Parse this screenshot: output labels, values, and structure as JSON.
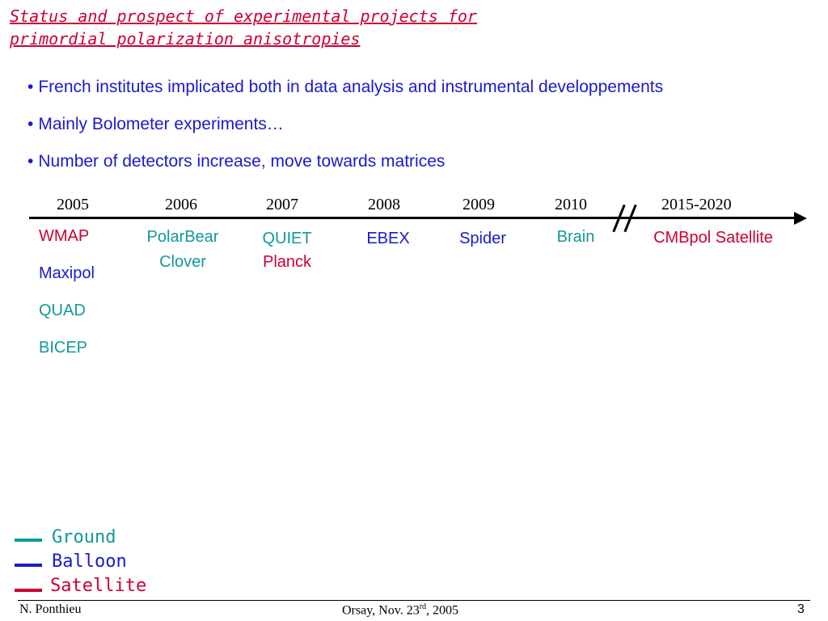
{
  "slide": {
    "title_line1": "Status and prospect of experimental projects for",
    "title_line2": "primordial polarization anisotropies",
    "bullets": [
      "French institutes implicated both in data analysis and instrumental developpements",
      "Mainly Bolometer experiments…",
      "Number of detectors increase, move towards matrices"
    ],
    "bullet_symbol": "•"
  },
  "timeline": {
    "years": [
      "2005",
      "2006",
      "2007",
      "2008",
      "2009",
      "2010",
      "2015-2020"
    ],
    "projects": {
      "p2005": [
        "WMAP",
        "Maxipol",
        "QUAD",
        "BICEP"
      ],
      "p2006": [
        "PolarBear",
        "Clover"
      ],
      "p2007": [
        "QUIET",
        "Planck"
      ],
      "p2008": [
        "EBEX"
      ],
      "p2009": [
        "Spider"
      ],
      "p2010": [
        "Brain"
      ],
      "p2015": [
        "CMBpol Satellite"
      ]
    }
  },
  "legend": {
    "ground": "Ground",
    "balloon": "Balloon",
    "satellite": "Satellite"
  },
  "colors": {
    "ground": "#119999",
    "balloon": "#1a1acc",
    "satellite": "#cc0033"
  },
  "footer": {
    "author": "N. Ponthieu",
    "place_prefix": "Orsay, Nov. 23",
    "place_sup": "rd",
    "place_suffix": ", 2005",
    "page_number": "3"
  }
}
